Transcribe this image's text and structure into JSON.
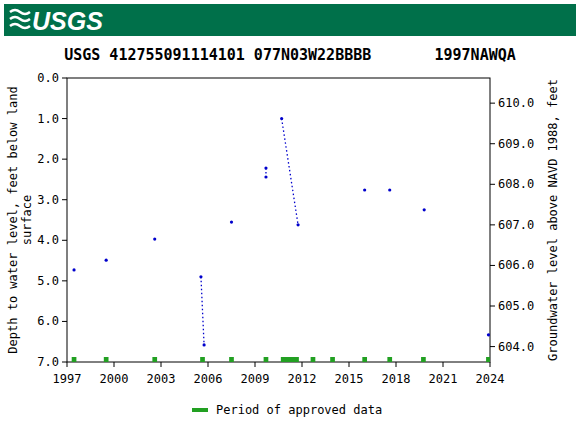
{
  "chart_data": {
    "type": "line",
    "logo": "USGS",
    "title": "USGS 412755091114101 077N03W22BBBB       1997NAWQA",
    "ylabel": [
      "Depth to water level, feet below land",
      "surface"
    ],
    "y2label": "Groundwater level above NAVD 1988, feet",
    "xlim": [
      1997,
      2024
    ],
    "xticks": [
      1997,
      2000,
      2003,
      2006,
      2009,
      2012,
      2015,
      2018,
      2021,
      2024
    ],
    "ylim": [
      0,
      7
    ],
    "yticks": [
      {
        "value": 0,
        "label": "0.0"
      },
      {
        "value": 1,
        "label": "1.0"
      },
      {
        "value": 2,
        "label": "2.0"
      },
      {
        "value": 3,
        "label": "3.0"
      },
      {
        "value": 4,
        "label": "4.0"
      },
      {
        "value": 5,
        "label": "5.0"
      },
      {
        "value": 6,
        "label": "6.0"
      },
      {
        "value": 7,
        "label": "7.0"
      }
    ],
    "y2lim": [
      610.62,
      603.62
    ],
    "y2ticks": [
      {
        "value": 604,
        "label": "604.0"
      },
      {
        "value": 605,
        "label": "605.0"
      },
      {
        "value": 606,
        "label": "606.0"
      },
      {
        "value": 607,
        "label": "607.0"
      },
      {
        "value": 608,
        "label": "608.0"
      },
      {
        "value": 609,
        "label": "609.0"
      },
      {
        "value": 610,
        "label": "610.0"
      }
    ],
    "grid": false,
    "series": [
      {
        "color": "#0000cc",
        "marker": "dot",
        "line_style": "dotted",
        "x": [
          1997.45,
          null,
          1999.5,
          null,
          2002.6,
          null,
          2005.55,
          2005.75,
          null,
          2007.5,
          null,
          2009.7,
          2009.7,
          null,
          2010.7,
          2011.75,
          null,
          2016.0,
          null,
          2017.6,
          null,
          2019.8,
          null,
          2023.9
        ],
        "values": [
          4.73,
          null,
          4.49,
          null,
          3.97,
          null,
          4.9,
          6.58,
          null,
          3.55,
          null,
          2.22,
          2.44,
          null,
          1.0,
          3.62,
          null,
          2.76,
          null,
          2.76,
          null,
          3.25,
          null,
          6.33
        ]
      }
    ],
    "approved_periods": {
      "name": "Period of approved data",
      "color": "#22a022",
      "ranges": [
        [
          1997.3,
          1997.6
        ],
        [
          1999.35,
          1999.65
        ],
        [
          2002.45,
          2002.75
        ],
        [
          2005.5,
          2005.8
        ],
        [
          2007.35,
          2007.65
        ],
        [
          2009.55,
          2009.85
        ],
        [
          2010.65,
          2011.8
        ],
        [
          2012.55,
          2012.85
        ],
        [
          2013.8,
          2014.1
        ],
        [
          2015.85,
          2016.15
        ],
        [
          2017.45,
          2017.75
        ],
        [
          2019.6,
          2019.9
        ],
        [
          2023.75,
          2024.0
        ]
      ]
    }
  }
}
